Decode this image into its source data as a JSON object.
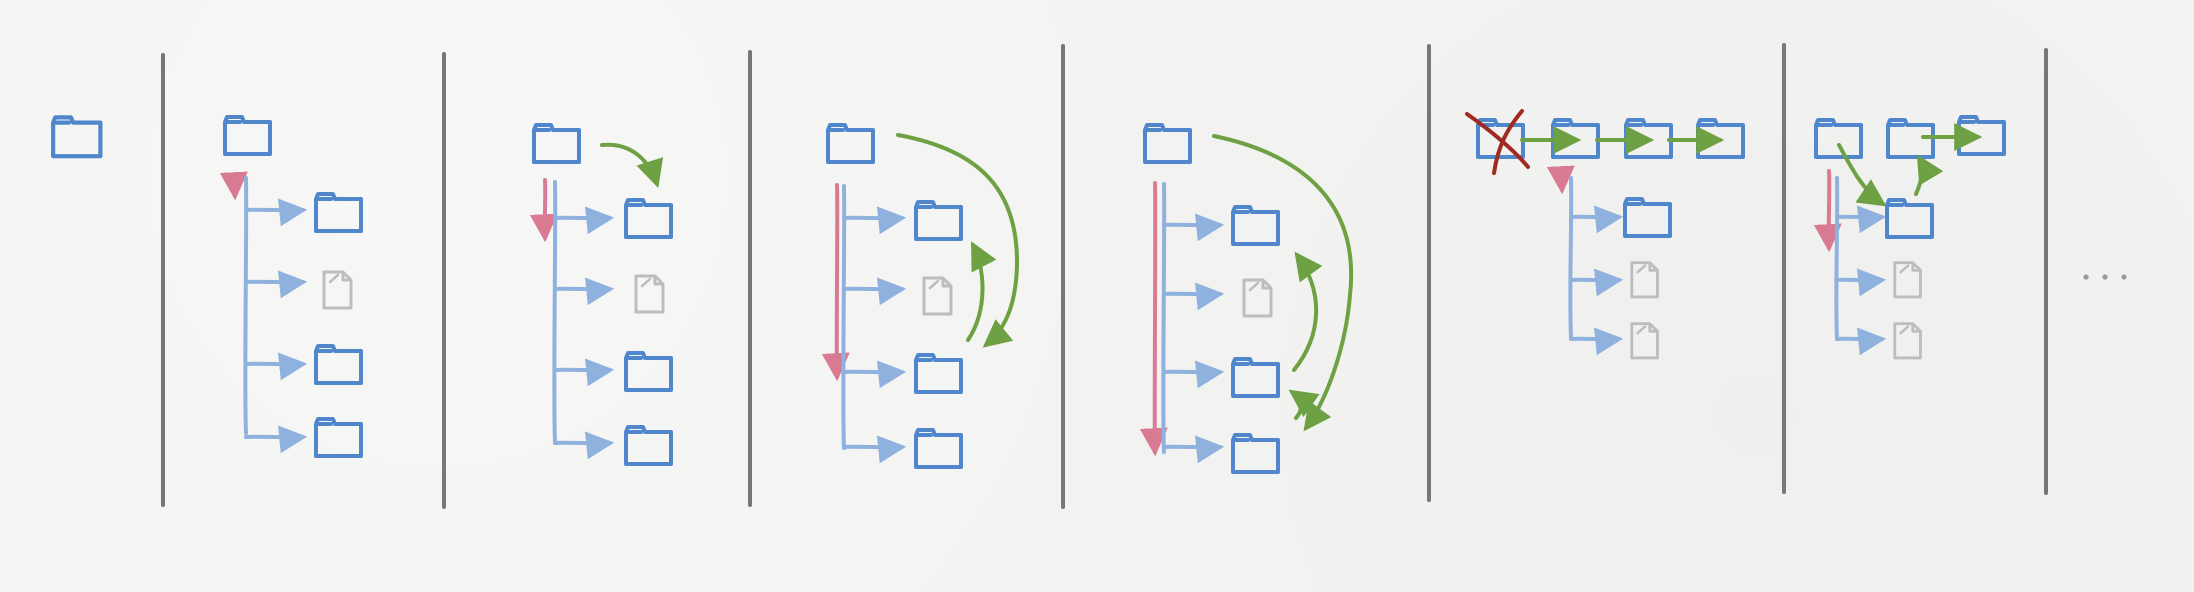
{
  "colors": {
    "folder": "#4f86cc",
    "tree": "#8fb1dd",
    "pink": "#d97a93",
    "green": "#6ea144",
    "file": "#bdbdbd",
    "divider": "#777777",
    "cross": "#9e2a22",
    "ellipsis": "#9a9a9a"
  },
  "icons": {
    "folder": "folder-icon",
    "file": "document-icon",
    "arrow": "arrow-icon",
    "cross": "cross-icon",
    "ellipsis": "ellipsis-icon"
  }
}
